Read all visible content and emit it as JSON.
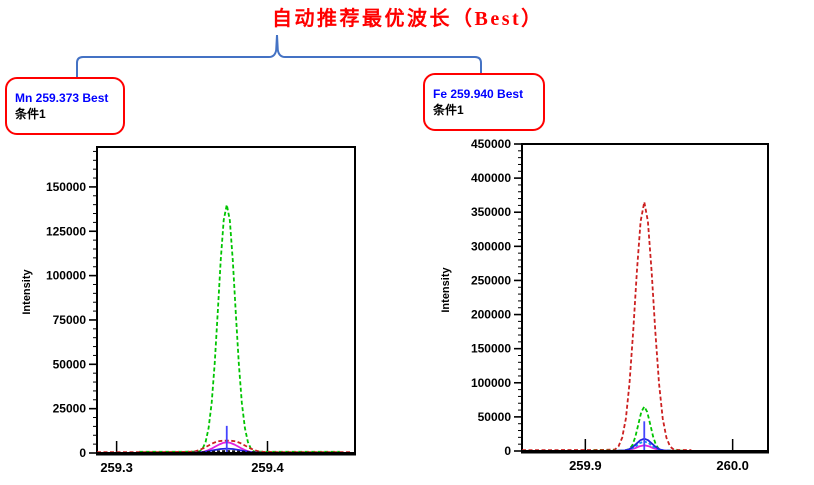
{
  "title": {
    "text": "自动推荐最优波长（Best）"
  },
  "callouts": [
    {
      "id": "mn",
      "line1": "Mn 259.373 Best",
      "line2": "条件1"
    },
    {
      "id": "fe",
      "line1": "Fe 259.940 Best",
      "line2": "条件1"
    }
  ],
  "colors": {
    "title": "#FF0000",
    "callout_border": "#FF0000",
    "callout_text": "#0000FF",
    "brace": "#4472C4",
    "axis": "#000000",
    "green": "#00C400",
    "red": "#CC2020",
    "magenta": "#E020E0",
    "blue": "#2222DD",
    "cyan": "#1199EE",
    "black": "#111111",
    "marker": "#4444FF"
  },
  "chart_data": [
    {
      "type": "line",
      "element": "Mn",
      "best_wavelength": 259.373,
      "ylabel": "Intensity",
      "xlabel": "",
      "grid": false,
      "legend": false,
      "xlim": [
        259.287,
        259.458
      ],
      "ylim": [
        0,
        172500
      ],
      "x_ticks": [
        {
          "v": 259.3,
          "label": "259.3"
        },
        {
          "v": 259.4,
          "label": "259.4"
        }
      ],
      "y_ticks": [
        {
          "v": 0,
          "label": "0"
        },
        {
          "v": 25000,
          "label": "25000"
        },
        {
          "v": 50000,
          "label": "50000"
        },
        {
          "v": 75000,
          "label": "75000"
        },
        {
          "v": 100000,
          "label": "100000"
        },
        {
          "v": 125000,
          "label": "125000"
        },
        {
          "v": 150000,
          "label": "150000"
        }
      ],
      "y_minor_step": 5000,
      "series": [
        {
          "name": "green",
          "color_key": "green",
          "dash": "4 2.5",
          "points": [
            [
              259.315,
              700
            ],
            [
              259.335,
              700
            ],
            [
              259.348,
              750
            ],
            [
              259.353,
              800
            ],
            [
              259.355,
              900
            ],
            [
              259.357,
              2400
            ],
            [
              259.359,
              6200
            ],
            [
              259.361,
              14100
            ],
            [
              259.363,
              28400
            ],
            [
              259.365,
              50500
            ],
            [
              259.367,
              78800
            ],
            [
              259.369,
              108500
            ],
            [
              259.371,
              131300
            ],
            [
              259.373,
              140000
            ],
            [
              259.375,
              131300
            ],
            [
              259.377,
              108500
            ],
            [
              259.379,
              78800
            ],
            [
              259.381,
              50500
            ],
            [
              259.383,
              28400
            ],
            [
              259.385,
              14100
            ],
            [
              259.387,
              6200
            ],
            [
              259.389,
              2400
            ],
            [
              259.391,
              900
            ],
            [
              259.394,
              750
            ],
            [
              259.4,
              700
            ],
            [
              259.42,
              700
            ],
            [
              259.448,
              700
            ]
          ]
        },
        {
          "name": "red",
          "color_key": "red",
          "dash": "4 2.5",
          "points": [
            [
              259.287,
              450
            ],
            [
              259.3,
              450
            ],
            [
              259.33,
              480
            ],
            [
              259.349,
              650
            ],
            [
              259.352,
              950
            ],
            [
              259.355,
              1750
            ],
            [
              259.358,
              2880
            ],
            [
              259.361,
              4250
            ],
            [
              259.364,
              5600
            ],
            [
              259.367,
              6620
            ],
            [
              259.37,
              6900
            ],
            [
              259.373,
              7000
            ],
            [
              259.376,
              6900
            ],
            [
              259.379,
              6620
            ],
            [
              259.382,
              5600
            ],
            [
              259.385,
              4250
            ],
            [
              259.388,
              2880
            ],
            [
              259.391,
              1750
            ],
            [
              259.394,
              950
            ],
            [
              259.397,
              650
            ],
            [
              259.405,
              480
            ],
            [
              259.43,
              450
            ],
            [
              259.456,
              450
            ]
          ]
        },
        {
          "name": "magenta",
          "color_key": "magenta",
          "dash": null,
          "points": [
            [
              259.35,
              250
            ],
            [
              259.3555,
              400
            ],
            [
              259.358,
              810
            ],
            [
              259.3605,
              1500
            ],
            [
              259.363,
              2470
            ],
            [
              259.3655,
              3640
            ],
            [
              259.368,
              4800
            ],
            [
              259.3705,
              5680
            ],
            [
              259.373,
              6000
            ],
            [
              259.3755,
              5680
            ],
            [
              259.378,
              4800
            ],
            [
              259.3805,
              3640
            ],
            [
              259.383,
              2470
            ],
            [
              259.3855,
              1500
            ],
            [
              259.388,
              810
            ],
            [
              259.3905,
              400
            ],
            [
              259.396,
              250
            ]
          ]
        },
        {
          "name": "blue",
          "color_key": "blue",
          "dash": null,
          "points": [
            [
              259.352,
              200
            ],
            [
              259.357,
              500
            ],
            [
              259.361,
              1000
            ],
            [
              259.365,
              1700
            ],
            [
              259.369,
              2250
            ],
            [
              259.373,
              2500
            ],
            [
              259.377,
              2250
            ],
            [
              259.381,
              1700
            ],
            [
              259.385,
              1000
            ],
            [
              259.389,
              500
            ],
            [
              259.394,
              200
            ]
          ]
        },
        {
          "name": "black-dashed",
          "color_key": "black",
          "dash": "3 2",
          "points": [
            [
              259.35,
              250
            ],
            [
              259.358,
              500
            ],
            [
              259.364,
              800
            ],
            [
              259.369,
              1000
            ],
            [
              259.373,
              1100
            ],
            [
              259.377,
              1000
            ],
            [
              259.382,
              800
            ],
            [
              259.388,
              500
            ],
            [
              259.396,
              250
            ]
          ]
        }
      ],
      "markers": [
        {
          "x": 259.373,
          "y": 15300,
          "color_key": "marker"
        }
      ]
    },
    {
      "type": "line",
      "element": "Fe",
      "best_wavelength": 259.94,
      "ylabel": "Intensity",
      "xlabel": "",
      "grid": false,
      "legend": false,
      "xlim": [
        259.857,
        260.024
      ],
      "ylim": [
        0,
        450000
      ],
      "x_ticks": [
        {
          "v": 259.9,
          "label": "259.9"
        },
        {
          "v": 260.0,
          "label": "260.0"
        }
      ],
      "y_ticks": [
        {
          "v": 0,
          "label": "0"
        },
        {
          "v": 50000,
          "label": "50000"
        },
        {
          "v": 100000,
          "label": "100000"
        },
        {
          "v": 150000,
          "label": "150000"
        },
        {
          "v": 200000,
          "label": "200000"
        },
        {
          "v": 250000,
          "label": "250000"
        },
        {
          "v": 300000,
          "label": "300000"
        },
        {
          "v": 350000,
          "label": "350000"
        },
        {
          "v": 400000,
          "label": "400000"
        },
        {
          "v": 450000,
          "label": "450000"
        }
      ],
      "y_minor_step": 10000,
      "series": [
        {
          "name": "red",
          "color_key": "red",
          "dash": "4 2.5",
          "points": [
            [
              259.857,
              1300
            ],
            [
              259.88,
              1300
            ],
            [
              259.905,
              1400
            ],
            [
              259.9125,
              1600
            ],
            [
              259.9175,
              2000
            ],
            [
              259.92,
              2000
            ],
            [
              259.9225,
              6800
            ],
            [
              259.925,
              19600
            ],
            [
              259.9275,
              47800
            ],
            [
              259.93,
              99400
            ],
            [
              259.9325,
              175500
            ],
            [
              259.935,
              263500
            ],
            [
              259.9375,
              336500
            ],
            [
              259.94,
              365000
            ],
            [
              259.9425,
              336500
            ],
            [
              259.945,
              263500
            ],
            [
              259.9475,
              175500
            ],
            [
              259.95,
              99400
            ],
            [
              259.9525,
              47800
            ],
            [
              259.955,
              19600
            ],
            [
              259.9575,
              6800
            ],
            [
              259.96,
              2000
            ],
            [
              259.9635,
              1400
            ],
            [
              259.972,
              1300
            ]
          ]
        },
        {
          "name": "green",
          "color_key": "green",
          "dash": "4 2.5",
          "points": [
            [
              259.905,
              500
            ],
            [
              259.92,
              550
            ],
            [
              259.926,
              700
            ],
            [
              259.93,
              2850
            ],
            [
              259.932,
              8800
            ],
            [
              259.934,
              21100
            ],
            [
              259.936,
              39400
            ],
            [
              259.938,
              57300
            ],
            [
              259.94,
              65000
            ],
            [
              259.942,
              57300
            ],
            [
              259.944,
              39400
            ],
            [
              259.946,
              21100
            ],
            [
              259.948,
              8800
            ],
            [
              259.95,
              2850
            ],
            [
              259.952,
              700
            ],
            [
              259.956,
              550
            ],
            [
              259.966,
              500
            ]
          ]
        },
        {
          "name": "magenta",
          "color_key": "magenta",
          "dash": null,
          "points": [
            [
              259.919,
              200
            ],
            [
              259.925,
              600
            ],
            [
              259.93,
              1900
            ],
            [
              259.934,
              4300
            ],
            [
              259.937,
              7000
            ],
            [
              259.94,
              8500
            ],
            [
              259.943,
              7000
            ],
            [
              259.946,
              4300
            ],
            [
              259.95,
              1900
            ],
            [
              259.955,
              600
            ],
            [
              259.961,
              200
            ]
          ]
        },
        {
          "name": "cyan-dashed",
          "color_key": "cyan",
          "dash": "3 2",
          "points": [
            [
              259.921,
              250
            ],
            [
              259.926,
              700
            ],
            [
              259.93,
              2200
            ],
            [
              259.934,
              6500
            ],
            [
              259.937,
              11500
            ],
            [
              259.94,
              14000
            ],
            [
              259.943,
              11500
            ],
            [
              259.946,
              6500
            ],
            [
              259.95,
              2200
            ],
            [
              259.954,
              700
            ],
            [
              259.959,
              250
            ]
          ]
        },
        {
          "name": "blue",
          "color_key": "blue",
          "dash": null,
          "points": [
            [
              259.922,
              300
            ],
            [
              259.927,
              790
            ],
            [
              259.9296,
              2430
            ],
            [
              259.9322,
              5850
            ],
            [
              259.9348,
              10900
            ],
            [
              259.9374,
              15900
            ],
            [
              259.94,
              18000
            ],
            [
              259.9426,
              15900
            ],
            [
              259.9452,
              10900
            ],
            [
              259.9478,
              5850
            ],
            [
              259.9504,
              2430
            ],
            [
              259.953,
              790
            ],
            [
              259.958,
              300
            ]
          ]
        }
      ],
      "markers": [
        {
          "x": 259.94,
          "y": 43500,
          "color_key": "marker"
        }
      ]
    }
  ]
}
